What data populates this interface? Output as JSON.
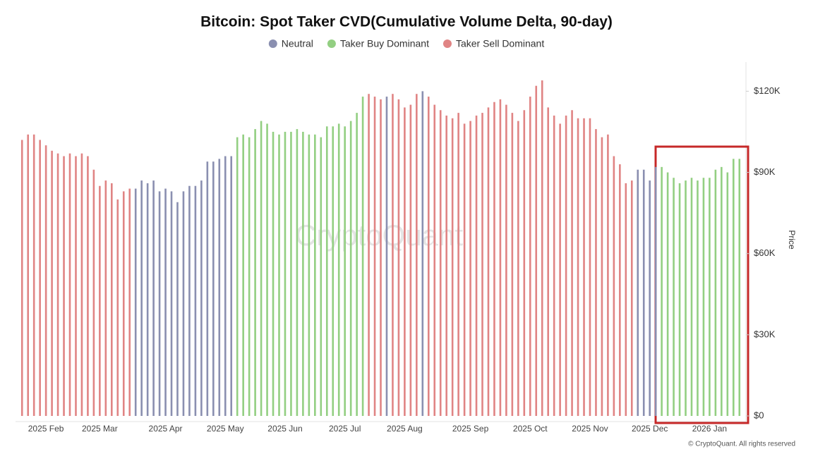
{
  "chart_data": {
    "type": "bar",
    "title": "Bitcoin: Spot Taker CVD(Cumulative Volume Delta, 90-day)",
    "y_axis_title": "Price",
    "watermark": "CryptoQuant",
    "footer": "© CryptoQuant. All rights reserved",
    "ylim": [
      0,
      130000
    ],
    "yticks": [
      {
        "value": 0,
        "label": "$0"
      },
      {
        "value": 30000,
        "label": "$30K"
      },
      {
        "value": 60000,
        "label": "$60K"
      },
      {
        "value": 90000,
        "label": "$90K"
      },
      {
        "value": 120000,
        "label": "$120K"
      }
    ],
    "grid": false,
    "categories": [
      null,
      null,
      null,
      null,
      "2025 Feb",
      null,
      null,
      null,
      null,
      null,
      null,
      null,
      null,
      "2025 Mar",
      null,
      null,
      null,
      null,
      null,
      null,
      null,
      null,
      null,
      null,
      "2025 Apr",
      null,
      null,
      null,
      null,
      null,
      null,
      null,
      null,
      null,
      "2025 May",
      null,
      null,
      null,
      null,
      null,
      null,
      null,
      null,
      null,
      "2025 Jun",
      null,
      null,
      null,
      null,
      null,
      null,
      null,
      null,
      null,
      "2025 Jul",
      null,
      null,
      null,
      null,
      null,
      null,
      null,
      null,
      null,
      "2025 Aug",
      null,
      null,
      null,
      null,
      null,
      null,
      null,
      null,
      null,
      null,
      "2025 Sep",
      null,
      null,
      null,
      null,
      null,
      null,
      null,
      null,
      null,
      "2025 Oct",
      null,
      null,
      null,
      null,
      null,
      null,
      null,
      null,
      null,
      "2025 Nov",
      null,
      null,
      null,
      null,
      null,
      null,
      null,
      null,
      null,
      "2025 Dec",
      null,
      null,
      null,
      null,
      null,
      null,
      null,
      null,
      null,
      "2026 Jan",
      null,
      null,
      null,
      null,
      null
    ],
    "series": [
      {
        "name": "Neutral",
        "color": "#8a8fb0",
        "values": [
          null,
          null,
          null,
          null,
          null,
          null,
          null,
          null,
          null,
          null,
          null,
          null,
          null,
          null,
          null,
          null,
          null,
          null,
          null,
          84000,
          87000,
          86000,
          87000,
          83000,
          84000,
          83000,
          79000,
          83000,
          85000,
          85000,
          87000,
          94000,
          94000,
          95000,
          96000,
          96000,
          null,
          null,
          null,
          null,
          null,
          null,
          null,
          null,
          null,
          null,
          null,
          null,
          null,
          null,
          null,
          null,
          null,
          null,
          null,
          null,
          null,
          null,
          null,
          null,
          null,
          118000,
          null,
          null,
          null,
          null,
          null,
          120000,
          null,
          null,
          null,
          null,
          null,
          null,
          null,
          null,
          null,
          null,
          null,
          null,
          null,
          null,
          null,
          null,
          null,
          null,
          null,
          null,
          null,
          null,
          null,
          null,
          null,
          null,
          null,
          null,
          null,
          null,
          null,
          null,
          null,
          null,
          null,
          91000,
          91000,
          87000,
          92000,
          null,
          null,
          null,
          null,
          null,
          null,
          null,
          null,
          null,
          null,
          null,
          null,
          null,
          null
        ]
      },
      {
        "name": "Taker Buy Dominant",
        "color": "#93cf82",
        "values": [
          null,
          null,
          null,
          null,
          null,
          null,
          null,
          null,
          null,
          null,
          null,
          null,
          null,
          null,
          null,
          null,
          null,
          null,
          null,
          null,
          null,
          null,
          null,
          null,
          null,
          null,
          null,
          null,
          null,
          null,
          null,
          null,
          null,
          null,
          null,
          null,
          103000,
          104000,
          103000,
          106000,
          109000,
          108000,
          105000,
          104000,
          105000,
          105000,
          106000,
          105000,
          104000,
          104000,
          103000,
          107000,
          107000,
          108000,
          107000,
          109000,
          112000,
          118000,
          null,
          null,
          null,
          null,
          null,
          null,
          null,
          null,
          null,
          null,
          null,
          null,
          null,
          null,
          null,
          null,
          null,
          null,
          null,
          null,
          null,
          null,
          null,
          null,
          null,
          null,
          null,
          null,
          null,
          null,
          null,
          null,
          null,
          null,
          null,
          null,
          null,
          null,
          null,
          null,
          null,
          null,
          null,
          null,
          null,
          null,
          null,
          null,
          null,
          92000,
          90000,
          88000,
          86000,
          87000,
          88000,
          87000,
          88000,
          88000,
          91000,
          92000,
          90000,
          95000,
          95000
        ]
      },
      {
        "name": "Taker Sell Dominant",
        "color": "#e08484",
        "values": [
          102000,
          104000,
          104000,
          102000,
          100000,
          98000,
          97000,
          96000,
          97000,
          96000,
          97000,
          96000,
          91000,
          85000,
          87000,
          86000,
          80000,
          83000,
          84000,
          null,
          null,
          null,
          null,
          null,
          null,
          null,
          null,
          null,
          null,
          null,
          null,
          null,
          null,
          null,
          null,
          null,
          null,
          null,
          null,
          null,
          null,
          null,
          null,
          null,
          null,
          null,
          null,
          null,
          null,
          null,
          null,
          null,
          null,
          null,
          null,
          null,
          null,
          null,
          119000,
          118000,
          117000,
          null,
          119000,
          117000,
          114000,
          115000,
          119000,
          null,
          118000,
          115000,
          113000,
          111000,
          110000,
          112000,
          108000,
          109000,
          111000,
          112000,
          114000,
          116000,
          117000,
          115000,
          112000,
          109000,
          113000,
          118000,
          122000,
          124000,
          114000,
          111000,
          108000,
          111000,
          113000,
          110000,
          110000,
          110000,
          106000,
          103000,
          104000,
          96000,
          93000,
          86000,
          87000,
          null,
          null,
          null,
          null,
          null,
          null,
          null,
          null,
          null,
          null,
          null,
          null,
          null,
          null,
          null,
          null,
          null,
          null
        ]
      }
    ]
  }
}
